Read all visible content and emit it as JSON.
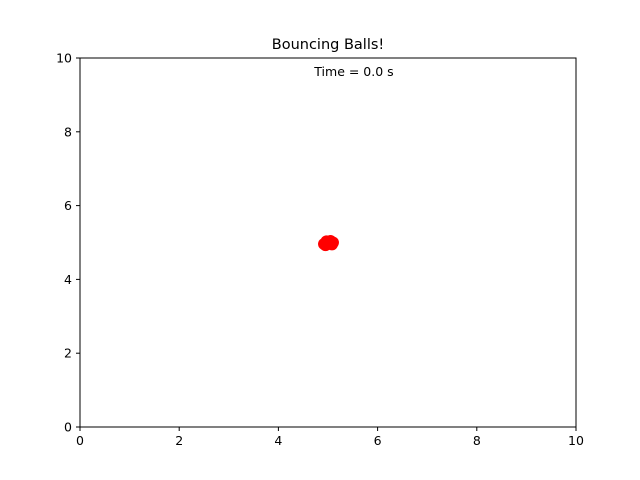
{
  "chart_data": {
    "type": "scatter",
    "title": "Bouncing Balls!",
    "annotation": "Time = 0.0 s",
    "xlabel": "",
    "ylabel": "",
    "xlim": [
      0,
      10
    ],
    "ylim": [
      0,
      10
    ],
    "grid": false,
    "x_ticks": [
      0,
      2,
      4,
      6,
      8,
      10
    ],
    "y_ticks": [
      0,
      2,
      4,
      6,
      8,
      10
    ],
    "x_tick_labels": [
      "0",
      "2",
      "4",
      "6",
      "8",
      "10"
    ],
    "y_tick_labels": [
      "0",
      "2",
      "4",
      "6",
      "8",
      "10"
    ],
    "series": [
      {
        "color": "#ff0000",
        "points": [
          {
            "x": 4.92,
            "y": 4.96
          },
          {
            "x": 4.97,
            "y": 5.03
          },
          {
            "x": 5.03,
            "y": 5.02
          },
          {
            "x": 5.08,
            "y": 4.95
          },
          {
            "x": 5.0,
            "y": 4.98
          },
          {
            "x": 4.95,
            "y": 4.93
          },
          {
            "x": 5.05,
            "y": 5.04
          },
          {
            "x": 5.1,
            "y": 5.0
          }
        ]
      }
    ]
  }
}
